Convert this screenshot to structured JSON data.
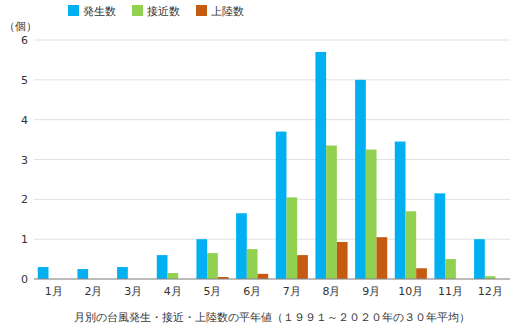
{
  "chart_data": {
    "type": "bar",
    "categories": [
      "1月",
      "2月",
      "3月",
      "4月",
      "5月",
      "6月",
      "7月",
      "8月",
      "9月",
      "10月",
      "11月",
      "12月"
    ],
    "series": [
      {
        "name": "発生数",
        "color": "#00b0f0",
        "values": [
          0.3,
          0.25,
          0.3,
          0.6,
          1.0,
          1.65,
          3.7,
          5.7,
          5.0,
          3.45,
          2.15,
          1.0
        ]
      },
      {
        "name": "接近数",
        "color": "#92d050",
        "values": [
          0.0,
          0.0,
          0.0,
          0.15,
          0.65,
          0.75,
          2.05,
          3.35,
          3.25,
          1.7,
          0.5,
          0.07
        ]
      },
      {
        "name": "上陸数",
        "color": "#c55a11",
        "values": [
          0.0,
          0.0,
          0.0,
          0.0,
          0.05,
          0.13,
          0.6,
          0.93,
          1.05,
          0.27,
          0.0,
          0.0
        ]
      }
    ],
    "ylabel": "（個）",
    "xlabel": "月別の台風発生・接近・上陸数の平年値（１９９１～２０２０年の３０年平均）",
    "ylim": [
      0,
      6
    ],
    "yticks": [
      0,
      1,
      2,
      3,
      4,
      5,
      6
    ],
    "grid": true,
    "legend": "upper left"
  }
}
